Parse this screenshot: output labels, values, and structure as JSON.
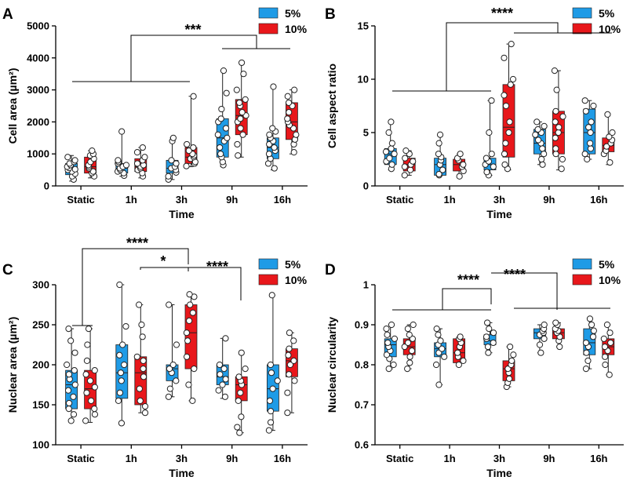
{
  "colors": {
    "5%": "#1f9be6",
    "10%": "#e8171b",
    "edge": "#222222"
  },
  "chart_data": [
    {
      "panel": "A",
      "type": "boxplot",
      "ylabel": "Cell area (µm²)",
      "xlabel": "Time",
      "ylim": [
        0,
        5000
      ],
      "yticks": [
        0,
        1000,
        2000,
        3000,
        4000,
        5000
      ],
      "categories": [
        "Static",
        "1h",
        "3h",
        "9h",
        "16h"
      ],
      "series": [
        {
          "name": "5%",
          "boxes": [
            {
              "min": 150,
              "q1": 350,
              "med": 550,
              "q3": 700,
              "max": 950,
              "points": [
                200,
                300,
                380,
                450,
                500,
                520,
                560,
                600,
                650,
                700,
                750,
                800,
                900
              ]
            },
            {
              "min": 300,
              "q1": 400,
              "med": 550,
              "q3": 700,
              "max": 1700,
              "points": [
                320,
                400,
                450,
                500,
                550,
                600,
                650,
                700,
                750,
                800,
                1700
              ]
            },
            {
              "min": 200,
              "q1": 400,
              "med": 550,
              "q3": 800,
              "max": 1500,
              "points": [
                200,
                300,
                420,
                500,
                550,
                600,
                700,
                800,
                1400,
                1500
              ]
            },
            {
              "min": 600,
              "q1": 900,
              "med": 1500,
              "q3": 2100,
              "max": 3600,
              "points": [
                650,
                750,
                900,
                1000,
                1200,
                1400,
                1500,
                1600,
                1800,
                2000,
                2100,
                2400,
                2900,
                3600
              ]
            },
            {
              "min": 500,
              "q1": 850,
              "med": 1200,
              "q3": 1500,
              "max": 3100,
              "points": [
                550,
                700,
                850,
                1000,
                1100,
                1200,
                1300,
                1400,
                1500,
                1600,
                1700,
                1800,
                3100
              ]
            }
          ]
        },
        {
          "name": "10%",
          "boxes": [
            {
              "min": 250,
              "q1": 400,
              "med": 600,
              "q3": 900,
              "max": 1100,
              "points": [
                300,
                400,
                450,
                550,
                600,
                650,
                750,
                850,
                950,
                1000,
                1100
              ]
            },
            {
              "min": 250,
              "q1": 450,
              "med": 600,
              "q3": 850,
              "max": 1200,
              "points": [
                300,
                400,
                500,
                550,
                600,
                650,
                700,
                800,
                900,
                1050,
                1200
              ]
            },
            {
              "min": 600,
              "q1": 700,
              "med": 900,
              "q3": 1200,
              "max": 2800,
              "points": [
                620,
                700,
                750,
                850,
                900,
                950,
                1000,
                1100,
                1200,
                1300,
                2800
              ]
            },
            {
              "min": 900,
              "q1": 1600,
              "med": 2200,
              "q3": 2700,
              "max": 3850,
              "points": [
                950,
                1300,
                1600,
                1800,
                2000,
                2100,
                2200,
                2300,
                2500,
                2600,
                2700,
                3000,
                3500,
                3850
              ]
            },
            {
              "min": 1000,
              "q1": 1450,
              "med": 2000,
              "q3": 2600,
              "max": 3000,
              "points": [
                1050,
                1300,
                1450,
                1600,
                1800,
                1900,
                2000,
                2100,
                2300,
                2500,
                2600,
                2800,
                3000
              ]
            }
          ]
        }
      ],
      "significance": [
        "***"
      ]
    },
    {
      "panel": "B",
      "type": "boxplot",
      "ylabel": "Cell aspect ratio",
      "xlabel": "Time",
      "ylim": [
        0,
        15
      ],
      "yticks": [
        0,
        5,
        10,
        15
      ],
      "categories": [
        "Static",
        "1h",
        "3h",
        "9h",
        "16h"
      ],
      "series": [
        {
          "name": "5%",
          "boxes": [
            {
              "min": 1.5,
              "q1": 2.0,
              "med": 3.0,
              "q3": 3.5,
              "max": 6.0,
              "points": [
                1.6,
                2.0,
                2.3,
                2.6,
                3.0,
                3.2,
                3.5,
                4.0,
                5.0,
                6.0
              ]
            },
            {
              "min": 1.0,
              "q1": 1.0,
              "med": 2.0,
              "q3": 2.6,
              "max": 4.8,
              "points": [
                1.0,
                1.1,
                1.5,
                2.0,
                2.4,
                2.7,
                3.0,
                4.0,
                4.8
              ]
            },
            {
              "min": 1.0,
              "q1": 1.5,
              "med": 2.0,
              "q3": 2.6,
              "max": 8.0,
              "points": [
                1.0,
                1.3,
                1.8,
                2.0,
                2.3,
                2.6,
                3.0,
                5.0,
                8.0
              ]
            },
            {
              "min": 2.0,
              "q1": 3.0,
              "med": 4.0,
              "q3": 5.3,
              "max": 6.0,
              "points": [
                2.0,
                2.5,
                3.0,
                3.5,
                4.0,
                4.3,
                4.8,
                5.0,
                5.3,
                5.6,
                6.0
              ]
            },
            {
              "min": 2.5,
              "q1": 3.0,
              "med": 5.0,
              "q3": 7.2,
              "max": 8.0,
              "points": [
                2.5,
                3.0,
                3.5,
                4.0,
                5.0,
                5.5,
                6.0,
                7.0,
                7.5,
                8.0
              ]
            }
          ]
        },
        {
          "name": "10%",
          "boxes": [
            {
              "min": 1.0,
              "q1": 1.4,
              "med": 2.0,
              "q3": 2.6,
              "max": 3.3,
              "points": [
                1.0,
                1.5,
                1.8,
                2.0,
                2.3,
                2.6,
                3.0,
                3.3
              ]
            },
            {
              "min": 0.8,
              "q1": 1.4,
              "med": 2.0,
              "q3": 2.5,
              "max": 3.0,
              "points": [
                0.9,
                1.4,
                1.8,
                2.0,
                2.4,
                2.6,
                3.0
              ]
            },
            {
              "min": 1.5,
              "q1": 2.7,
              "med": 5.5,
              "q3": 9.5,
              "max": 13.3,
              "points": [
                1.6,
                2.0,
                3.0,
                4.0,
                5.0,
                6.0,
                7.5,
                8.5,
                9.5,
                10.0,
                12.0,
                13.3
              ]
            },
            {
              "min": 1.5,
              "q1": 3.0,
              "med": 5.0,
              "q3": 7.0,
              "max": 10.8,
              "points": [
                1.6,
                2.5,
                3.0,
                3.5,
                4.5,
                5.0,
                5.5,
                6.0,
                6.5,
                7.0,
                9.0,
                10.8
              ]
            },
            {
              "min": 2.0,
              "q1": 3.2,
              "med": 3.8,
              "q3": 4.5,
              "max": 6.7,
              "points": [
                2.2,
                3.0,
                3.3,
                3.7,
                4.0,
                4.3,
                4.6,
                5.0,
                6.7
              ]
            }
          ]
        }
      ],
      "significance": [
        "****"
      ]
    },
    {
      "panel": "C",
      "type": "boxplot",
      "ylabel": "Nuclear area (µm²)",
      "xlabel": "Time",
      "ylim": [
        100,
        300
      ],
      "yticks": [
        100,
        150,
        200,
        250,
        300
      ],
      "categories": [
        "Static",
        "1h",
        "3h",
        "9h",
        "16h"
      ],
      "series": [
        {
          "name": "5%",
          "boxes": [
            {
              "min": 128,
              "q1": 145,
              "med": 175,
              "q3": 193,
              "max": 245,
              "points": [
                130,
                138,
                145,
                152,
                160,
                168,
                175,
                182,
                188,
                193,
                200,
                215,
                230,
                245
              ]
            },
            {
              "min": 125,
              "q1": 158,
              "med": 190,
              "q3": 225,
              "max": 300,
              "points": [
                127,
                155,
                165,
                180,
                190,
                200,
                212,
                225,
                248,
                300
              ]
            },
            {
              "min": 160,
              "q1": 180,
              "med": 195,
              "q3": 200,
              "max": 275,
              "points": [
                160,
                170,
                180,
                190,
                195,
                200,
                225,
                275
              ]
            },
            {
              "min": 158,
              "q1": 175,
              "med": 185,
              "q3": 200,
              "max": 233,
              "points": [
                160,
                168,
                175,
                182,
                188,
                195,
                200,
                233
              ]
            },
            {
              "min": 118,
              "q1": 142,
              "med": 170,
              "q3": 200,
              "max": 287,
              "points": [
                118,
                128,
                142,
                155,
                170,
                180,
                190,
                200,
                287
              ]
            }
          ]
        },
        {
          "name": "10%",
          "boxes": [
            {
              "min": 128,
              "q1": 145,
              "med": 170,
              "q3": 193,
              "max": 245,
              "points": [
                130,
                138,
                145,
                155,
                165,
                172,
                180,
                188,
                193,
                205,
                225,
                245
              ]
            },
            {
              "min": 140,
              "q1": 150,
              "med": 190,
              "q3": 210,
              "max": 275,
              "points": [
                140,
                148,
                155,
                170,
                185,
                195,
                205,
                210,
                235,
                250,
                275
              ]
            },
            {
              "min": 155,
              "q1": 195,
              "med": 240,
              "q3": 275,
              "max": 288,
              "points": [
                155,
                175,
                195,
                210,
                230,
                240,
                255,
                265,
                275,
                285,
                288
              ]
            },
            {
              "min": 115,
              "q1": 155,
              "med": 175,
              "q3": 185,
              "max": 215,
              "points": [
                115,
                122,
                135,
                155,
                165,
                175,
                180,
                185,
                195,
                215
              ]
            },
            {
              "min": 140,
              "q1": 185,
              "med": 205,
              "q3": 220,
              "max": 240,
              "points": [
                140,
                165,
                180,
                188,
                200,
                205,
                212,
                220,
                230,
                240
              ]
            }
          ]
        }
      ],
      "significance": [
        "****",
        "*",
        "****"
      ]
    },
    {
      "panel": "D",
      "type": "boxplot",
      "ylabel": "Nuclear circularity",
      "xlabel": "Time",
      "ylim": [
        0.6,
        1.0
      ],
      "yticks": [
        0.6,
        0.7,
        0.8,
        0.9,
        1.0
      ],
      "categories": [
        "Static",
        "1h",
        "3h",
        "9h",
        "16h"
      ],
      "series": [
        {
          "name": "5%",
          "boxes": [
            {
              "min": 0.79,
              "q1": 0.82,
              "med": 0.85,
              "q3": 0.865,
              "max": 0.9,
              "points": [
                0.79,
                0.8,
                0.815,
                0.825,
                0.835,
                0.845,
                0.855,
                0.865,
                0.875,
                0.89,
                0.9
              ]
            },
            {
              "min": 0.75,
              "q1": 0.82,
              "med": 0.84,
              "q3": 0.855,
              "max": 0.89,
              "points": [
                0.75,
                0.8,
                0.82,
                0.83,
                0.84,
                0.85,
                0.86,
                0.875,
                0.89
              ]
            },
            {
              "min": 0.83,
              "q1": 0.85,
              "med": 0.86,
              "q3": 0.875,
              "max": 0.905,
              "points": [
                0.83,
                0.845,
                0.855,
                0.865,
                0.87,
                0.88,
                0.89,
                0.905
              ]
            },
            {
              "min": 0.83,
              "q1": 0.865,
              "med": 0.88,
              "q3": 0.89,
              "max": 0.9,
              "points": [
                0.83,
                0.85,
                0.865,
                0.875,
                0.88,
                0.885,
                0.89,
                0.9
              ]
            },
            {
              "min": 0.79,
              "q1": 0.825,
              "med": 0.855,
              "q3": 0.89,
              "max": 0.915,
              "points": [
                0.79,
                0.81,
                0.83,
                0.845,
                0.855,
                0.87,
                0.885,
                0.9,
                0.915
              ]
            }
          ]
        },
        {
          "name": "10%",
          "boxes": [
            {
              "min": 0.79,
              "q1": 0.825,
              "med": 0.845,
              "q3": 0.865,
              "max": 0.9,
              "points": [
                0.79,
                0.805,
                0.82,
                0.835,
                0.845,
                0.855,
                0.865,
                0.875,
                0.89,
                0.9
              ]
            },
            {
              "min": 0.8,
              "q1": 0.805,
              "med": 0.83,
              "q3": 0.865,
              "max": 0.87,
              "points": [
                0.8,
                0.81,
                0.82,
                0.83,
                0.845,
                0.855,
                0.865,
                0.87
              ]
            },
            {
              "min": 0.745,
              "q1": 0.76,
              "med": 0.79,
              "q3": 0.81,
              "max": 0.845,
              "points": [
                0.745,
                0.755,
                0.765,
                0.78,
                0.79,
                0.8,
                0.81,
                0.825,
                0.845
              ]
            },
            {
              "min": 0.845,
              "q1": 0.865,
              "med": 0.88,
              "q3": 0.89,
              "max": 0.905,
              "points": [
                0.845,
                0.86,
                0.87,
                0.88,
                0.885,
                0.89,
                0.9,
                0.905
              ]
            },
            {
              "min": 0.775,
              "q1": 0.825,
              "med": 0.845,
              "q3": 0.865,
              "max": 0.9,
              "points": [
                0.775,
                0.8,
                0.82,
                0.835,
                0.845,
                0.855,
                0.865,
                0.88,
                0.9
              ]
            }
          ]
        }
      ],
      "significance": [
        "****",
        "****"
      ]
    }
  ]
}
